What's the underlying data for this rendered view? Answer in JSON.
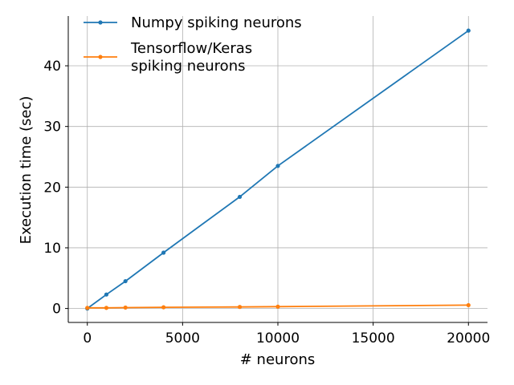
{
  "chart_data": {
    "type": "line",
    "xlabel": "# neurons",
    "ylabel": "Execution time (sec)",
    "xlim": [
      -1000,
      21000
    ],
    "ylim": [
      -2.3,
      48.2
    ],
    "xticks": [
      0,
      5000,
      10000,
      15000,
      20000
    ],
    "yticks": [
      0,
      10,
      20,
      30,
      40
    ],
    "grid": true,
    "legend_position": "top-left",
    "series": [
      {
        "name": "Numpy spiking neurons",
        "color": "#1f77b4",
        "x": [
          0,
          1000,
          2000,
          4000,
          8000,
          10000,
          20000
        ],
        "y": [
          0.0,
          2.3,
          4.5,
          9.2,
          18.4,
          23.5,
          45.8
        ]
      },
      {
        "name": "Tensorflow/Keras\nspiking neurons",
        "color": "#ff7f0e",
        "x": [
          0,
          1000,
          2000,
          4000,
          8000,
          10000,
          20000
        ],
        "y": [
          0.1,
          0.1,
          0.15,
          0.2,
          0.25,
          0.3,
          0.55
        ]
      }
    ]
  }
}
